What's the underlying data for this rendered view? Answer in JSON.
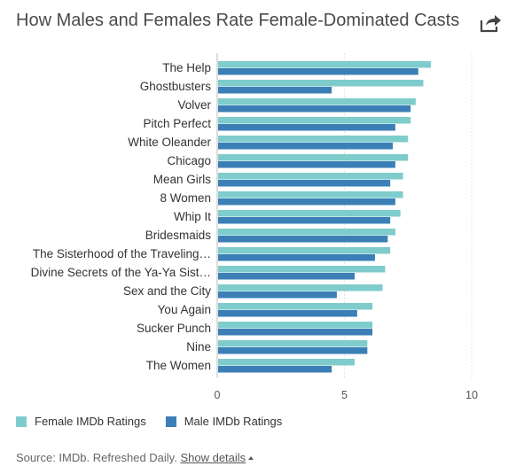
{
  "title": "How Males and Females Rate Female-Dominated Casts",
  "share_icon": "share-icon",
  "colors": {
    "female": "#7fcccc",
    "male": "#3b7fb6",
    "grid": "#e4e4e4",
    "axis": "#bbbbbb"
  },
  "legend": {
    "female": "Female IMDb Ratings",
    "male": "Male IMDb Ratings"
  },
  "footer": {
    "source": "Source: IMDb. Refreshed Daily.",
    "details": "Show details"
  },
  "chart_data": {
    "type": "bar",
    "orientation": "horizontal",
    "categories": [
      "The Help",
      "Ghostbusters",
      "Volver",
      "Pitch Perfect",
      "White Oleander",
      "Chicago",
      "Mean Girls",
      "8 Women",
      "Whip It",
      "Bridesmaids",
      "The Sisterhood of the Traveling…",
      "Divine Secrets of the Ya-Ya Sist…",
      "Sex and the City",
      "You Again",
      "Sucker Punch",
      "Nine",
      "The Women"
    ],
    "series": [
      {
        "name": "Female IMDb Ratings",
        "color": "#7fcccc",
        "values": [
          8.4,
          8.1,
          7.8,
          7.6,
          7.5,
          7.5,
          7.3,
          7.3,
          7.2,
          7.0,
          6.8,
          6.6,
          6.5,
          6.1,
          6.1,
          5.9,
          5.4
        ]
      },
      {
        "name": "Male IMDb Ratings",
        "color": "#3b7fb6",
        "values": [
          7.9,
          4.5,
          7.6,
          7.0,
          6.9,
          7.0,
          6.8,
          7.0,
          6.8,
          6.7,
          6.2,
          5.4,
          4.7,
          5.5,
          6.1,
          5.9,
          4.5
        ]
      }
    ],
    "xticks": [
      0,
      5,
      10
    ],
    "xlim": [
      0,
      10
    ],
    "grid": true,
    "legend_position": "bottom-left"
  }
}
